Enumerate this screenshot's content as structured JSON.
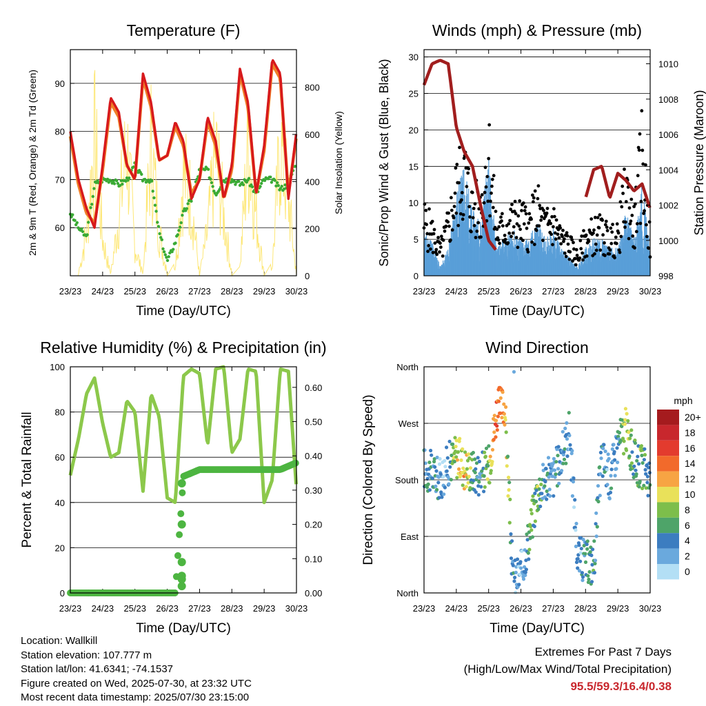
{
  "colors": {
    "temp_2m": "#d7191c",
    "temp_9m": "#f07f28",
    "dewpoint": "#3aaa35",
    "solar": "#fde776",
    "wind_speed": "#5a9fd8",
    "gust": "#000000",
    "pressure": "#a11e1e",
    "rh": "#8cc84b",
    "precip": "#4db541",
    "extremes_values": "#c8272d"
  },
  "x_tick_labels": [
    "23/23",
    "24/23",
    "25/23",
    "26/23",
    "27/23",
    "28/23",
    "29/23",
    "30/23"
  ],
  "footer": {
    "location": "Location: Wallkill",
    "elevation": "Station elevation: 107.777 m",
    "latlon": "Station lat/lon: 41.6341; -74.1537",
    "created": "Figure created on Wed, 2025-07-30, at 23:32 UTC",
    "recent": "Most recent data timestamp: 2025/07/30 23:15:00"
  },
  "extremes": {
    "heading": "Extremes For Past 7 Days",
    "subheading": "(High/Low/Max Wind/Total Precipitation)",
    "values": "95.5/59.3/16.4/0.38"
  },
  "chart_data": [
    {
      "type": "line",
      "title": "Temperature (F)",
      "xlabel": "Time (Day/UTC)",
      "ylabel": "2m & 9m T (Red, Orange) & 2m Td (Green)",
      "y2label": "Solar Insolation (Yellow)",
      "x": [
        23.0,
        23.25,
        23.5,
        23.75,
        24.0,
        24.25,
        24.5,
        24.75,
        25.0,
        25.25,
        25.5,
        25.75,
        26.0,
        26.25,
        26.5,
        26.75,
        27.0,
        27.25,
        27.5,
        27.75,
        28.0,
        28.25,
        28.5,
        28.75,
        29.0,
        29.25,
        29.5,
        29.75,
        30.0
      ],
      "ylim": [
        50,
        97
      ],
      "y2lim": [
        0,
        960
      ],
      "yticks": [
        60,
        70,
        80,
        90
      ],
      "y2ticks": [
        0,
        200,
        400,
        600,
        800
      ],
      "series": [
        {
          "values": [
            80,
            70,
            64,
            60,
            73,
            87,
            84,
            73,
            70,
            92,
            86,
            74,
            75,
            82,
            78,
            66,
            70,
            83,
            78,
            66,
            73,
            93,
            86,
            67,
            77,
            95,
            92,
            66,
            80
          ]
        },
        {
          "values": [
            79,
            69,
            63,
            61,
            72,
            86,
            83,
            73,
            70,
            91,
            85,
            74,
            75,
            81,
            77,
            67,
            70,
            82,
            77,
            66,
            72,
            92,
            85,
            67,
            76,
            94,
            91,
            67,
            79
          ]
        },
        {
          "values": [
            63,
            60,
            58,
            69,
            70,
            70,
            69,
            70,
            73,
            70,
            70,
            59,
            53,
            57,
            63,
            66,
            72,
            72,
            67,
            70,
            70,
            69,
            70,
            67,
            70,
            70,
            68,
            69,
            74
          ]
        },
        {
          "values": [
            0,
            0,
            300,
            920,
            250,
            0,
            400,
            880,
            200,
            0,
            880,
            300,
            0,
            60,
            700,
            500,
            0,
            300,
            840,
            400,
            0,
            40,
            880,
            400,
            0,
            60,
            880,
            520,
            0
          ]
        }
      ]
    },
    {
      "type": "line",
      "title": "Winds (mph) & Pressure (mb)",
      "xlabel": "Time (Day/UTC)",
      "ylabel": "Sonic/Prop Wind & Gust (Blue, Black)",
      "y2label": "Station Pressure (Maroon)",
      "x": [
        23.0,
        23.25,
        23.5,
        23.75,
        24.0,
        24.25,
        24.5,
        24.75,
        25.0,
        25.25,
        25.5,
        25.75,
        26.0,
        26.25,
        26.5,
        26.75,
        27.0,
        27.25,
        27.5,
        27.75,
        28.0,
        28.25,
        28.5,
        28.75,
        29.0,
        29.25,
        29.5,
        29.75,
        30.0
      ],
      "ylim": [
        0,
        31
      ],
      "y2lim": [
        998,
        1010.8
      ],
      "yticks": [
        0,
        5,
        10,
        15,
        20,
        25,
        30
      ],
      "y2ticks": [
        998,
        1000,
        1002,
        1004,
        1006,
        1008,
        1010
      ],
      "series": [
        {
          "values": [
            5,
            4,
            1,
            3,
            9,
            12,
            7,
            6,
            13,
            3,
            4,
            5,
            4,
            4,
            6,
            4,
            5,
            3,
            2,
            1,
            3,
            4,
            4,
            3,
            3,
            7,
            4,
            10,
            3
          ]
        },
        {
          "values": [
            9,
            7,
            4,
            8,
            14,
            17,
            11,
            11,
            20,
            7,
            8,
            9,
            9,
            8,
            11,
            8,
            9,
            6,
            5,
            3,
            6,
            7,
            7,
            6,
            6,
            14,
            8,
            20,
            5
          ]
        },
        {
          "values": [
            1008.8,
            1010.0,
            1010.2,
            1010.0,
            1006.4,
            1005.0,
            1004.2,
            1002.0,
            1000.0,
            999.4,
            null,
            null,
            null,
            null,
            null,
            null,
            null,
            null,
            null,
            null,
            1002.4,
            1004.0,
            1004.2,
            1002.4,
            1003.8,
            1003.4,
            1002.8,
            1003.2,
            1001.8
          ]
        }
      ]
    },
    {
      "type": "line",
      "title": "Relative Humidity (%) & Precipitation (in)",
      "xlabel": "Time (Day/UTC)",
      "ylabel": "Percent & Total Rainfall",
      "x": [
        23.0,
        23.25,
        23.5,
        23.75,
        24.0,
        24.25,
        24.5,
        24.75,
        25.0,
        25.25,
        25.5,
        25.75,
        26.0,
        26.25,
        26.5,
        26.75,
        27.0,
        27.25,
        27.5,
        27.75,
        28.0,
        28.25,
        28.5,
        28.75,
        29.0,
        29.25,
        29.5,
        29.75,
        30.0
      ],
      "ylim": [
        0,
        100
      ],
      "y2lim": [
        0,
        0.66
      ],
      "yticks": [
        0,
        20,
        40,
        60,
        80,
        100
      ],
      "y2ticks": [
        0.0,
        0.1,
        0.2,
        0.3,
        0.4,
        0.5,
        0.6
      ],
      "series": [
        {
          "values": [
            52,
            68,
            88,
            95,
            75,
            60,
            62,
            85,
            80,
            45,
            88,
            78,
            42,
            40,
            96,
            99,
            97,
            65,
            99,
            100,
            62,
            68,
            99,
            98,
            40,
            50,
            99,
            98,
            46
          ]
        },
        {
          "values": [
            0,
            0,
            0,
            0,
            0,
            0,
            0,
            0,
            0,
            0,
            0,
            0,
            0,
            0,
            0.34,
            0.35,
            0.36,
            0.36,
            0.36,
            0.36,
            0.36,
            0.36,
            0.36,
            0.36,
            0.36,
            0.36,
            0.36,
            0.37,
            0.38
          ]
        }
      ],
      "y2tick_labels": [
        "0.00",
        "0.10",
        "0.20",
        "0.30",
        "0.40",
        "0.50",
        "0.60"
      ]
    },
    {
      "type": "scatter",
      "title": "Wind Direction",
      "xlabel": "Time (Day/UTC)",
      "ylabel": "Direction (Colored By Speed)",
      "ylim": [
        0,
        360
      ],
      "ytick_values": [
        0,
        90,
        180,
        270,
        360
      ],
      "ytick_labels": [
        "North",
        "East",
        "South",
        "West",
        "North"
      ],
      "colorbar_title": "mph",
      "colorbar_labels": [
        "20+",
        "18",
        "16",
        "14",
        "12",
        "10",
        "8",
        "6",
        "4",
        "2",
        "0"
      ],
      "colorbar_colors": [
        "#a51b1e",
        "#c8272d",
        "#e33b2e",
        "#f26a2b",
        "#f7a443",
        "#e9e15a",
        "#7dbe4b",
        "#4ea469",
        "#3c7dc0",
        "#6aa9dd",
        "#b3dff5"
      ],
      "x": [
        23.0,
        23.25,
        23.5,
        23.75,
        24.0,
        24.25,
        24.5,
        24.75,
        25.0,
        25.25,
        25.5,
        25.75,
        26.0,
        26.25,
        26.5,
        26.75,
        27.0,
        27.25,
        27.5,
        27.75,
        28.0,
        28.25,
        28.5,
        28.75,
        29.0,
        29.25,
        29.5,
        29.75,
        30.0
      ],
      "values": [
        200,
        190,
        180,
        205,
        220,
        200,
        195,
        190,
        200,
        290,
        300,
        20,
        30,
        90,
        160,
        180,
        185,
        215,
        260,
        60,
        50,
        45,
        220,
        180,
        240,
        260,
        210,
        200,
        185
      ],
      "speeds": [
        4,
        5,
        2,
        3,
        9,
        11,
        6,
        4,
        8,
        15,
        12,
        3,
        2,
        6,
        7,
        4,
        3,
        4,
        3,
        2,
        4,
        5,
        4,
        3,
        4,
        9,
        5,
        8,
        3
      ]
    }
  ]
}
